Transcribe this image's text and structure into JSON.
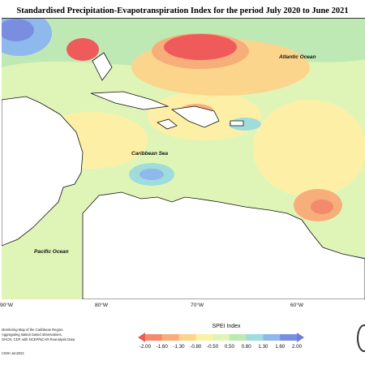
{
  "title": "Standardised Precipitation-Evapotranspiration Index for the period July 2020 to June 2021",
  "labels": {
    "atlantic": "Atlantic Ocean",
    "caribbean": "Caribbean Sea",
    "pacific": "Pacific Ocean"
  },
  "longitudes": [
    "90°W",
    "80°W",
    "70°W",
    "60°W"
  ],
  "legend": {
    "title": "SPEI Index",
    "values": [
      "-2.00",
      "-1.60",
      "-1.30",
      "-0.80",
      "-0.50",
      "0.50",
      "0.80",
      "1.30",
      "1.60",
      "2.00"
    ],
    "colors": [
      "#ef5b5b",
      "#f48a6c",
      "#f7ae7a",
      "#fbd58c",
      "#fdf0a6",
      "#dff5b8",
      "#bfe9b4",
      "#9fdcdc",
      "#8fb8ec",
      "#7a8ee0",
      "#6f7fd8"
    ]
  },
  "credits": {
    "line1": "Monitoring Map of the Caribbean Region.",
    "line2": "Aggregating station based observations,",
    "line3": "GHCN, CDF, with NCEP/NCAR Reanalysis Data"
  },
  "produced": "CIMH Jun2021"
}
